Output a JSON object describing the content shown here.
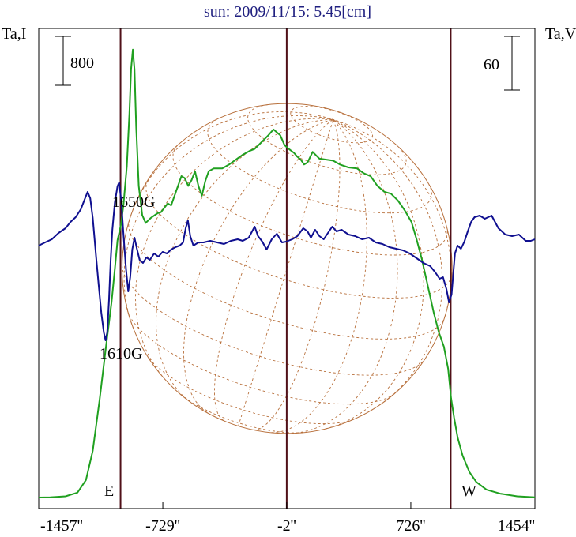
{
  "chart_data": {
    "type": "line",
    "title": "sun: 2009/11/15: 5.45[cm]",
    "left_axis_label": "Ta,I",
    "right_axis_label": "Ta,V",
    "x_ticks": [
      "-1457''",
      "-729''",
      "-2''",
      "726''",
      "1454''"
    ],
    "x_tick_values": [
      -1457,
      -729,
      -2,
      726,
      1454
    ],
    "xlim": [
      -1457,
      1454
    ],
    "left_scale_bar": "800",
    "right_scale_bar": "60",
    "annotations": {
      "east": "E",
      "west": "W",
      "field_1": "1650G",
      "field_2": "1610G"
    },
    "vertical_markers_x": [
      -977,
      -2,
      960
    ],
    "solar_radius_arcsec": 968,
    "colors": {
      "stokes_i": "#20a020",
      "stokes_v": "#101090",
      "markers": "#501018",
      "solar_disk": "#b8703c",
      "title": "#202080"
    },
    "series": [
      {
        "key": "stokes_i",
        "points": [
          [
            -1457,
            0
          ],
          [
            -1390,
            2
          ],
          [
            -1300,
            12
          ],
          [
            -1230,
            50
          ],
          [
            -1180,
            180
          ],
          [
            -1140,
            480
          ],
          [
            -1100,
            1000
          ],
          [
            -1060,
            1580
          ],
          [
            -1030,
            2000
          ],
          [
            -1010,
            2350
          ],
          [
            -995,
            2640
          ],
          [
            -975,
            2800
          ],
          [
            -960,
            3000
          ],
          [
            -940,
            3400
          ],
          [
            -925,
            3950
          ],
          [
            -915,
            4400
          ],
          [
            -905,
            4600
          ],
          [
            -895,
            4400
          ],
          [
            -885,
            3800
          ],
          [
            -870,
            3200
          ],
          [
            -850,
            2900
          ],
          [
            -830,
            2820
          ],
          [
            -800,
            2870
          ],
          [
            -760,
            2920
          ],
          [
            -740,
            2930
          ],
          [
            -700,
            3020
          ],
          [
            -680,
            3000
          ],
          [
            -650,
            3150
          ],
          [
            -620,
            3300
          ],
          [
            -600,
            3280
          ],
          [
            -580,
            3200
          ],
          [
            -560,
            3260
          ],
          [
            -540,
            3350
          ],
          [
            -520,
            3200
          ],
          [
            -500,
            3100
          ],
          [
            -480,
            3250
          ],
          [
            -460,
            3350
          ],
          [
            -430,
            3380
          ],
          [
            -380,
            3380
          ],
          [
            -340,
            3420
          ],
          [
            -300,
            3470
          ],
          [
            -260,
            3520
          ],
          [
            -220,
            3560
          ],
          [
            -190,
            3580
          ],
          [
            -150,
            3650
          ],
          [
            -110,
            3720
          ],
          [
            -80,
            3780
          ],
          [
            -40,
            3720
          ],
          [
            -15,
            3620
          ],
          [
            10,
            3580
          ],
          [
            40,
            3540
          ],
          [
            60,
            3500
          ],
          [
            80,
            3470
          ],
          [
            100,
            3420
          ],
          [
            120,
            3440
          ],
          [
            150,
            3550
          ],
          [
            190,
            3480
          ],
          [
            230,
            3470
          ],
          [
            270,
            3460
          ],
          [
            310,
            3420
          ],
          [
            360,
            3390
          ],
          [
            410,
            3380
          ],
          [
            450,
            3330
          ],
          [
            490,
            3300
          ],
          [
            530,
            3200
          ],
          [
            570,
            3140
          ],
          [
            610,
            3120
          ],
          [
            650,
            3050
          ],
          [
            690,
            2950
          ],
          [
            730,
            2830
          ],
          [
            760,
            2650
          ],
          [
            790,
            2450
          ],
          [
            820,
            2220
          ],
          [
            860,
            1900
          ],
          [
            890,
            1700
          ],
          [
            920,
            1550
          ],
          [
            945,
            1320
          ],
          [
            962,
            1020
          ],
          [
            980,
            820
          ],
          [
            1000,
            620
          ],
          [
            1030,
            430
          ],
          [
            1070,
            260
          ],
          [
            1110,
            160
          ],
          [
            1170,
            80
          ],
          [
            1250,
            40
          ],
          [
            1350,
            12
          ],
          [
            1454,
            2
          ]
        ]
      },
      {
        "key": "stokes_v",
        "points": [
          [
            -1457,
            0
          ],
          [
            -1420,
            4
          ],
          [
            -1380,
            8
          ],
          [
            -1340,
            16
          ],
          [
            -1300,
            22
          ],
          [
            -1270,
            30
          ],
          [
            -1240,
            36
          ],
          [
            -1210,
            46
          ],
          [
            -1185,
            60
          ],
          [
            -1170,
            68
          ],
          [
            -1155,
            60
          ],
          [
            -1140,
            35
          ],
          [
            -1120,
            -15
          ],
          [
            -1105,
            -50
          ],
          [
            -1090,
            -85
          ],
          [
            -1075,
            -110
          ],
          [
            -1065,
            -120
          ],
          [
            -1055,
            -110
          ],
          [
            -1045,
            -70
          ],
          [
            -1035,
            -20
          ],
          [
            -1025,
            20
          ],
          [
            -1010,
            55
          ],
          [
            -995,
            75
          ],
          [
            -985,
            80
          ],
          [
            -972,
            55
          ],
          [
            -960,
            15
          ],
          [
            -945,
            -30
          ],
          [
            -932,
            -58
          ],
          [
            -920,
            -40
          ],
          [
            -908,
            -5
          ],
          [
            -895,
            10
          ],
          [
            -880,
            -5
          ],
          [
            -865,
            -18
          ],
          [
            -845,
            -22
          ],
          [
            -825,
            -15
          ],
          [
            -805,
            -18
          ],
          [
            -780,
            -10
          ],
          [
            -755,
            -14
          ],
          [
            -730,
            -8
          ],
          [
            -705,
            -10
          ],
          [
            -680,
            -5
          ],
          [
            -655,
            -2
          ],
          [
            -630,
            0
          ],
          [
            -610,
            4
          ],
          [
            -595,
            22
          ],
          [
            -582,
            32
          ],
          [
            -568,
            12
          ],
          [
            -550,
            0
          ],
          [
            -520,
            4
          ],
          [
            -490,
            4
          ],
          [
            -450,
            6
          ],
          [
            -410,
            4
          ],
          [
            -370,
            2
          ],
          [
            -330,
            6
          ],
          [
            -290,
            8
          ],
          [
            -260,
            6
          ],
          [
            -225,
            10
          ],
          [
            -190,
            24
          ],
          [
            -170,
            12
          ],
          [
            -145,
            5
          ],
          [
            -120,
            -5
          ],
          [
            -90,
            8
          ],
          [
            -60,
            15
          ],
          [
            -30,
            4
          ],
          [
            -5,
            5
          ],
          [
            30,
            8
          ],
          [
            60,
            12
          ],
          [
            95,
            22
          ],
          [
            120,
            18
          ],
          [
            140,
            10
          ],
          [
            165,
            20
          ],
          [
            190,
            12
          ],
          [
            215,
            8
          ],
          [
            240,
            16
          ],
          [
            265,
            24
          ],
          [
            290,
            18
          ],
          [
            320,
            20
          ],
          [
            360,
            14
          ],
          [
            400,
            12
          ],
          [
            440,
            8
          ],
          [
            480,
            10
          ],
          [
            520,
            4
          ],
          [
            560,
            2
          ],
          [
            600,
            -2
          ],
          [
            640,
            -4
          ],
          [
            680,
            -6
          ],
          [
            720,
            -10
          ],
          [
            760,
            -16
          ],
          [
            800,
            -22
          ],
          [
            840,
            -26
          ],
          [
            870,
            -34
          ],
          [
            895,
            -42
          ],
          [
            915,
            -40
          ],
          [
            935,
            -55
          ],
          [
            950,
            -72
          ],
          [
            965,
            -62
          ],
          [
            975,
            -35
          ],
          [
            985,
            -10
          ],
          [
            1000,
            0
          ],
          [
            1020,
            -4
          ],
          [
            1040,
            5
          ],
          [
            1060,
            18
          ],
          [
            1080,
            30
          ],
          [
            1100,
            36
          ],
          [
            1130,
            38
          ],
          [
            1160,
            34
          ],
          [
            1200,
            38
          ],
          [
            1240,
            22
          ],
          [
            1280,
            14
          ],
          [
            1320,
            12
          ],
          [
            1360,
            14
          ],
          [
            1400,
            6
          ],
          [
            1430,
            6
          ],
          [
            1454,
            8
          ]
        ]
      }
    ]
  }
}
